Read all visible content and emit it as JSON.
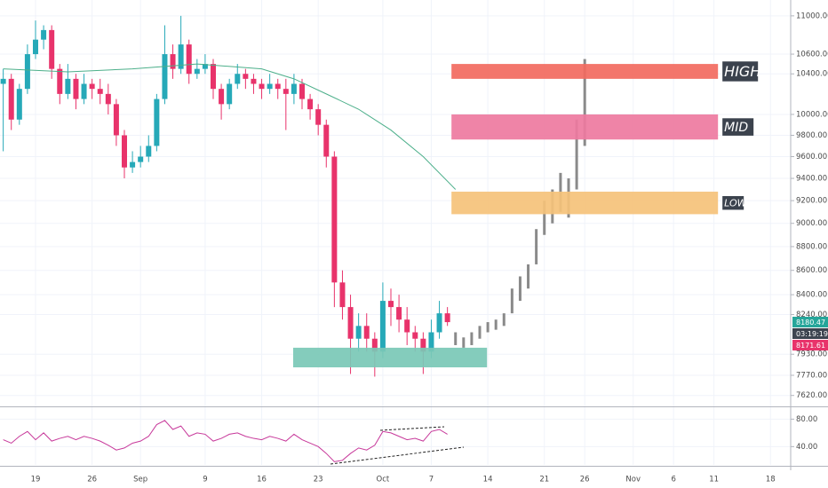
{
  "chart_data": [
    {
      "type": "candlestick",
      "ylim": [
        7540,
        11170
      ],
      "log_scale": true,
      "grid": true,
      "xlim": [
        -4.4,
        93.5
      ],
      "yticks": [
        {
          "value": 11000,
          "label": "11000.00"
        },
        {
          "value": 10600,
          "label": "10600.00"
        },
        {
          "value": 10400,
          "label": "10400.00"
        },
        {
          "value": 10000,
          "label": "10000.00"
        },
        {
          "value": 9800,
          "label": "9800.00"
        },
        {
          "value": 9600,
          "label": "9600.00"
        },
        {
          "value": 9400,
          "label": "9400.00"
        },
        {
          "value": 9200,
          "label": "9200.00"
        },
        {
          "value": 9000,
          "label": "9000.00"
        },
        {
          "value": 8800,
          "label": "8800.00"
        },
        {
          "value": 8600,
          "label": "8600.00"
        },
        {
          "value": 8400,
          "label": "8400.00"
        },
        {
          "value": 8240,
          "label": "8240.00"
        },
        {
          "value": 7930,
          "label": "7930.00"
        },
        {
          "value": 7770,
          "label": "7770.00"
        },
        {
          "value": 7620,
          "label": "7620.00"
        }
      ],
      "xticks": [
        {
          "value": 0,
          "label": "19"
        },
        {
          "value": 7,
          "label": "26"
        },
        {
          "value": 13,
          "label": "Sep"
        },
        {
          "value": 21,
          "label": "9"
        },
        {
          "value": 28,
          "label": "16"
        },
        {
          "value": 35,
          "label": "23"
        },
        {
          "value": 43,
          "label": "Oct"
        },
        {
          "value": 49,
          "label": "7"
        },
        {
          "value": 56,
          "label": "14"
        },
        {
          "value": 63,
          "label": "21"
        },
        {
          "value": 68,
          "label": "26"
        },
        {
          "value": 74,
          "label": "Nov"
        },
        {
          "value": 79,
          "label": "6"
        },
        {
          "value": 84,
          "label": "11"
        },
        {
          "value": 91,
          "label": "18"
        }
      ],
      "up_color": "#26a9b8",
      "down_color": "#e8336b",
      "x": [
        -4,
        -3,
        -2,
        -1,
        0,
        1,
        2,
        3,
        4,
        5,
        6,
        7,
        8,
        9,
        10,
        11,
        12,
        13,
        14,
        15,
        16,
        17,
        18,
        19,
        20,
        21,
        22,
        23,
        24,
        25,
        26,
        27,
        28,
        29,
        30,
        31,
        32,
        33,
        34,
        35,
        36,
        37,
        38,
        39,
        40,
        41,
        42,
        43,
        44,
        45,
        46,
        47,
        48,
        49,
        50,
        51
      ],
      "open": [
        10300,
        10350,
        9950,
        10250,
        10600,
        10750,
        10850,
        10450,
        10200,
        10350,
        10150,
        10300,
        10250,
        10200,
        10100,
        9800,
        9500,
        9550,
        9600,
        9700,
        10150,
        10600,
        10450,
        10700,
        10400,
        10450,
        10500,
        10250,
        10100,
        10300,
        10400,
        10350,
        10300,
        10250,
        10300,
        10250,
        10200,
        10300,
        10150,
        10050,
        9900,
        9600,
        8500,
        8300,
        8050,
        8150,
        8050,
        7950,
        8350,
        8300,
        8200,
        8100,
        8050,
        7950,
        8100,
        8250
      ],
      "high": [
        10450,
        10400,
        10300,
        10700,
        10950,
        10900,
        10900,
        10500,
        10500,
        10400,
        10400,
        10350,
        10350,
        10300,
        10150,
        9850,
        9650,
        9700,
        9800,
        10200,
        10900,
        10700,
        11000,
        10750,
        10550,
        10600,
        10550,
        10300,
        10350,
        10500,
        10450,
        10400,
        10350,
        10400,
        10350,
        10350,
        10400,
        10350,
        10200,
        10100,
        9950,
        9650,
        8600,
        8400,
        8250,
        8250,
        8100,
        8500,
        8450,
        8400,
        8300,
        8150,
        8100,
        8200,
        8350,
        8300
      ],
      "low": [
        9650,
        9850,
        9900,
        10200,
        10550,
        10650,
        10350,
        10100,
        10150,
        10050,
        10100,
        10150,
        10100,
        10000,
        9700,
        9400,
        9450,
        9500,
        9550,
        9650,
        10100,
        10350,
        10400,
        10300,
        10350,
        10400,
        10150,
        9950,
        10050,
        10250,
        10250,
        10200,
        10150,
        10200,
        10150,
        9850,
        10100,
        10050,
        9950,
        9800,
        9500,
        8300,
        8200,
        7780,
        7950,
        7950,
        7760,
        7900,
        8150,
        8100,
        8000,
        7950,
        7780,
        7900,
        8050,
        8150
      ],
      "close": [
        10350,
        9950,
        10250,
        10600,
        10750,
        10850,
        10450,
        10200,
        10350,
        10150,
        10300,
        10250,
        10200,
        10100,
        9800,
        9500,
        9550,
        9600,
        9700,
        10150,
        10600,
        10450,
        10700,
        10400,
        10450,
        10500,
        10250,
        10100,
        10300,
        10400,
        10350,
        10300,
        10250,
        10300,
        10250,
        10200,
        10300,
        10150,
        10050,
        9900,
        9600,
        8500,
        8300,
        8050,
        8150,
        8050,
        7950,
        8350,
        8300,
        8200,
        8100,
        8050,
        7950,
        8100,
        8250,
        8180
      ],
      "projection": {
        "color": "#8a8a8a",
        "x": [
          52,
          53,
          54,
          55,
          56,
          57,
          58,
          59,
          60,
          61,
          62,
          63,
          64,
          65,
          66,
          67,
          68
        ],
        "high": [
          8100,
          8060,
          8100,
          8150,
          8180,
          8200,
          8250,
          8450,
          8550,
          8650,
          8950,
          9200,
          9300,
          9450,
          9400,
          9950,
          10550
        ],
        "low": [
          8000,
          7980,
          8000,
          8050,
          8100,
          8120,
          8150,
          8250,
          8350,
          8450,
          8650,
          8900,
          9000,
          9100,
          9050,
          9300,
          9700
        ]
      },
      "moving_average": {
        "color": "#4caf8a",
        "x": [
          -4,
          4,
          12,
          20,
          28,
          32,
          36,
          40,
          44,
          48,
          52
        ],
        "values": [
          10450,
          10420,
          10450,
          10500,
          10450,
          10350,
          10200,
          10050,
          9850,
          9600,
          9300
        ]
      },
      "zones": [
        {
          "label": "HIGH",
          "x": [
            51.5,
            84.5
          ],
          "y": [
            10350,
            10500
          ],
          "color": "#f26a5f"
        },
        {
          "label": "MID",
          "x": [
            51.5,
            84.5
          ],
          "y": [
            9760,
            10000
          ],
          "color": "#ee7aa0"
        },
        {
          "label": "LOW",
          "x": [
            51.5,
            84.5
          ],
          "y": [
            9080,
            9280
          ],
          "color": "#f5c27a"
        },
        {
          "x": [
            31.9,
            55.9
          ],
          "y": [
            7830,
            7980
          ],
          "color": "#79c8b6"
        }
      ],
      "price_labels": [
        {
          "text": 8180.47,
          "color": "#26a69a"
        },
        {
          "text": "03:19:19",
          "color": "#3d4450"
        },
        {
          "text": 8171.61,
          "color": "#e8336b"
        }
      ]
    },
    {
      "type": "line",
      "color": "#c7389a",
      "ylim": [
        13.3,
        96
      ],
      "yticks": [
        {
          "value": 80,
          "label": "80.00"
        },
        {
          "value": 40,
          "label": "40.00"
        }
      ],
      "values": [
        50,
        45,
        55,
        62,
        50,
        60,
        48,
        52,
        55,
        50,
        55,
        52,
        48,
        42,
        35,
        38,
        45,
        48,
        55,
        72,
        78,
        65,
        70,
        55,
        60,
        58,
        48,
        52,
        58,
        60,
        55,
        52,
        50,
        55,
        52,
        48,
        58,
        50,
        45,
        40,
        30,
        18,
        20,
        30,
        38,
        35,
        42,
        62,
        60,
        55,
        50,
        52,
        48,
        62,
        65,
        58
      ]
    }
  ]
}
